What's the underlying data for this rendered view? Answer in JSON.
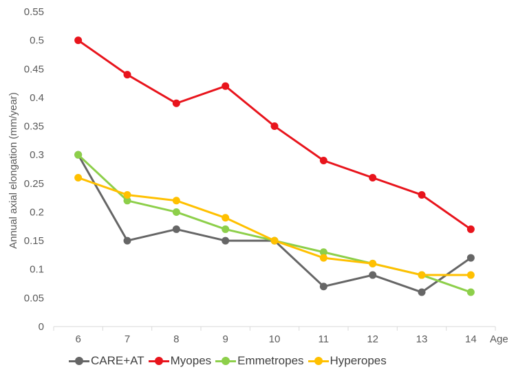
{
  "chart_data": {
    "type": "line",
    "ylabel": "Annual axial elongation (mm/year)",
    "xlabel": "Age",
    "x": [
      6,
      7,
      8,
      9,
      10,
      11,
      12,
      13,
      14
    ],
    "ylim": [
      0,
      0.55
    ],
    "yticks": [
      "0",
      "0.05",
      "0.1",
      "0.15",
      "0.2",
      "0.25",
      "0.3",
      "0.35",
      "0.4",
      "0.45",
      "0.5",
      "0.55"
    ],
    "grid": false,
    "legend_position": "bottom",
    "series": [
      {
        "name": "CARE+AT",
        "color": "#666666",
        "values": [
          0.3,
          0.15,
          0.17,
          0.15,
          0.15,
          0.07,
          0.09,
          0.06,
          0.12
        ]
      },
      {
        "name": "Myopes",
        "color": "#e8141c",
        "values": [
          0.5,
          0.44,
          0.39,
          0.42,
          0.35,
          0.29,
          0.26,
          0.23,
          0.17
        ]
      },
      {
        "name": "Emmetropes",
        "color": "#8dcf4a",
        "values": [
          0.3,
          0.22,
          0.2,
          0.17,
          0.15,
          0.13,
          0.11,
          0.09,
          0.06
        ]
      },
      {
        "name": "Hyperopes",
        "color": "#ffc000",
        "values": [
          0.26,
          0.23,
          0.22,
          0.19,
          0.15,
          0.12,
          0.11,
          0.09,
          0.09
        ]
      }
    ]
  }
}
